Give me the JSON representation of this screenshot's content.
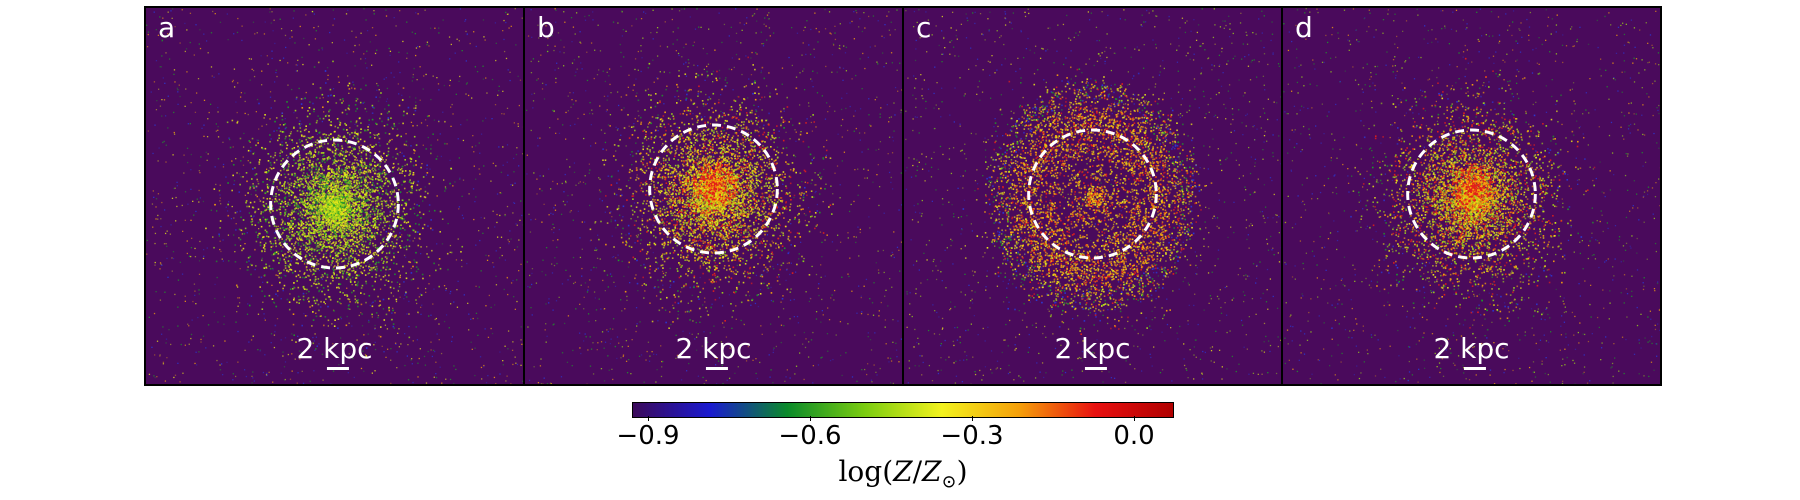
{
  "panels": [
    {
      "label": "a",
      "scale_label": "2 kpc"
    },
    {
      "label": "b",
      "scale_label": "2 kpc"
    },
    {
      "label": "c",
      "scale_label": "2 kpc"
    },
    {
      "label": "d",
      "scale_label": "2 kpc"
    }
  ],
  "colorbar": {
    "ticks": [
      "−0.9",
      "−0.6",
      "−0.3",
      "0.0"
    ],
    "label_prefix": "log(",
    "label_var": "Z",
    "label_slash": "/",
    "label_sub": "⊙",
    "label_suffix": ")",
    "colors": [
      "#3c0a5a",
      "#1a1ad0",
      "#0a8a2a",
      "#7acc10",
      "#f2f21e",
      "#f5a00a",
      "#e81010",
      "#b00000"
    ]
  },
  "map_colors": {
    "background": "#4a0a5c",
    "ring": "#ffffff"
  }
}
